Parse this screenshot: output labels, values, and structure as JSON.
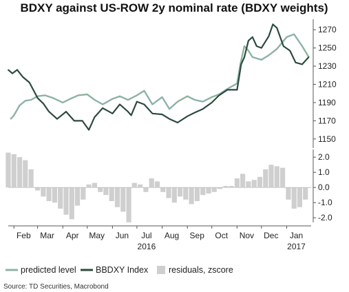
{
  "colors": {
    "predicted": "#8db3a1",
    "index": "#2c4a3c",
    "residuals": "#cfcfcf",
    "axis": "#555555",
    "zero_line": "#999999"
  },
  "chart_data": [
    {
      "type": "line",
      "title": "BDXY against US-ROW 2y nominal rate (BDXY weights)",
      "y_axis_position": "right",
      "ylim": [
        1140,
        1280
      ],
      "yticks": [
        1150,
        1170,
        1190,
        1210,
        1230,
        1250,
        1270
      ],
      "x_range": [
        "2016-01-25",
        "2017-01-31"
      ],
      "series": [
        {
          "name": "predicted level",
          "x": [
            "2016-01-28",
            "2016-02-01",
            "2016-02-08",
            "2016-02-15",
            "2016-02-22",
            "2016-03-01",
            "2016-03-10",
            "2016-03-20",
            "2016-04-01",
            "2016-04-10",
            "2016-04-20",
            "2016-05-01",
            "2016-05-10",
            "2016-05-20",
            "2016-06-01",
            "2016-06-10",
            "2016-06-20",
            "2016-07-01",
            "2016-07-10",
            "2016-07-20",
            "2016-08-01",
            "2016-08-10",
            "2016-08-20",
            "2016-09-01",
            "2016-09-10",
            "2016-09-20",
            "2016-10-01",
            "2016-10-10",
            "2016-10-20",
            "2016-11-01",
            "2016-11-05",
            "2016-11-10",
            "2016-11-15",
            "2016-11-20",
            "2016-12-01",
            "2016-12-10",
            "2016-12-20",
            "2017-01-01",
            "2017-01-10",
            "2017-01-20",
            "2017-01-28"
          ],
          "values": [
            1172,
            1176,
            1187,
            1192,
            1193,
            1197,
            1198,
            1195,
            1190,
            1194,
            1198,
            1199,
            1193,
            1188,
            1194,
            1197,
            1193,
            1198,
            1203,
            1188,
            1196,
            1183,
            1191,
            1197,
            1193,
            1191,
            1196,
            1199,
            1205,
            1211,
            1232,
            1252,
            1247,
            1240,
            1237,
            1242,
            1249,
            1262,
            1265,
            1252,
            1240
          ]
        },
        {
          "name": "BBDXY Index",
          "x": [
            "2016-01-25",
            "2016-01-30",
            "2016-02-05",
            "2016-02-12",
            "2016-02-20",
            "2016-03-01",
            "2016-03-08",
            "2016-03-15",
            "2016-03-25",
            "2016-04-05",
            "2016-04-15",
            "2016-04-25",
            "2016-05-03",
            "2016-05-10",
            "2016-05-20",
            "2016-06-01",
            "2016-06-10",
            "2016-06-20",
            "2016-06-24",
            "2016-07-01",
            "2016-07-10",
            "2016-07-20",
            "2016-08-01",
            "2016-08-10",
            "2016-08-20",
            "2016-09-01",
            "2016-09-10",
            "2016-09-20",
            "2016-10-01",
            "2016-10-10",
            "2016-10-20",
            "2016-11-01",
            "2016-11-06",
            "2016-11-10",
            "2016-11-15",
            "2016-11-20",
            "2016-11-25",
            "2016-12-01",
            "2016-12-10",
            "2016-12-15",
            "2016-12-20",
            "2016-12-28",
            "2017-01-05",
            "2017-01-12",
            "2017-01-20",
            "2017-01-28"
          ],
          "values": [
            1226,
            1222,
            1226,
            1218,
            1212,
            1195,
            1189,
            1180,
            1172,
            1180,
            1170,
            1170,
            1160,
            1174,
            1184,
            1178,
            1188,
            1180,
            1176,
            1191,
            1188,
            1178,
            1177,
            1172,
            1168,
            1175,
            1179,
            1183,
            1190,
            1198,
            1204,
            1204,
            1232,
            1240,
            1258,
            1262,
            1252,
            1250,
            1263,
            1276,
            1272,
            1252,
            1247,
            1234,
            1232,
            1240
          ]
        }
      ]
    },
    {
      "type": "bar",
      "ylim": [
        -2.4,
        2.6
      ],
      "yticks": [
        "2.0",
        "1.0",
        "0.0",
        "-1.0",
        "-2.0"
      ],
      "ytick_values": [
        2,
        1,
        0,
        -1,
        -2
      ],
      "x": [
        "2016-01-25",
        "2016-02-01",
        "2016-02-08",
        "2016-02-15",
        "2016-02-22",
        "2016-03-01",
        "2016-03-08",
        "2016-03-15",
        "2016-03-22",
        "2016-03-29",
        "2016-04-05",
        "2016-04-12",
        "2016-04-19",
        "2016-04-26",
        "2016-05-03",
        "2016-05-10",
        "2016-05-17",
        "2016-05-24",
        "2016-05-31",
        "2016-06-07",
        "2016-06-14",
        "2016-06-21",
        "2016-06-28",
        "2016-07-05",
        "2016-07-12",
        "2016-07-19",
        "2016-07-26",
        "2016-08-02",
        "2016-08-09",
        "2016-08-16",
        "2016-08-23",
        "2016-08-30",
        "2016-09-06",
        "2016-09-13",
        "2016-09-20",
        "2016-09-27",
        "2016-10-04",
        "2016-10-11",
        "2016-10-18",
        "2016-10-25",
        "2016-11-01",
        "2016-11-08",
        "2016-11-15",
        "2016-11-22",
        "2016-11-29",
        "2016-12-06",
        "2016-12-13",
        "2016-12-20",
        "2016-12-27",
        "2017-01-03",
        "2017-01-10",
        "2017-01-17",
        "2017-01-24"
      ],
      "values": [
        2.3,
        2.2,
        2.0,
        1.8,
        1.2,
        -0.2,
        -0.6,
        -0.9,
        -1.0,
        -1.4,
        -1.8,
        -2.1,
        -1.2,
        -0.8,
        0.2,
        0.3,
        -0.3,
        -0.5,
        -0.9,
        -1.3,
        -1.6,
        -2.3,
        0.3,
        0.2,
        -0.3,
        0.6,
        0.4,
        -0.3,
        -0.7,
        -1.0,
        -0.6,
        -0.8,
        -1.1,
        -0.9,
        -0.5,
        -0.4,
        -0.3,
        -0.1,
        0.1,
        0.1,
        0.6,
        0.9,
        0.4,
        0.5,
        0.7,
        1.2,
        1.5,
        1.4,
        1.3,
        -0.8,
        -1.4,
        -1.3,
        -0.8
      ]
    }
  ],
  "x_axis": {
    "months": [
      {
        "label": "Feb",
        "date": "2016-02-01"
      },
      {
        "label": "Mar",
        "date": "2016-03-01"
      },
      {
        "label": "Apr",
        "date": "2016-04-01"
      },
      {
        "label": "May",
        "date": "2016-05-01"
      },
      {
        "label": "Jun",
        "date": "2016-06-01"
      },
      {
        "label": "Jul",
        "date": "2016-07-01"
      },
      {
        "label": "Aug",
        "date": "2016-08-01"
      },
      {
        "label": "Sep",
        "date": "2016-09-01"
      },
      {
        "label": "Oct",
        "date": "2016-10-01"
      },
      {
        "label": "Nov",
        "date": "2016-11-01"
      },
      {
        "label": "Dec",
        "date": "2016-12-01"
      },
      {
        "label": "Jan",
        "date": "2017-01-01"
      }
    ],
    "years": [
      {
        "label": "2016",
        "date": "2016-07-01"
      },
      {
        "label": "2017",
        "date": "2017-01-01"
      }
    ]
  },
  "legend": [
    {
      "label": "predicted level",
      "kind": "line",
      "color_key": "predicted"
    },
    {
      "label": "BBDXY Index",
      "kind": "line",
      "color_key": "index"
    },
    {
      "label": "residuals, zscore",
      "kind": "box",
      "color_key": "residuals"
    }
  ],
  "source": "Source: TD Securities, Macrobond"
}
